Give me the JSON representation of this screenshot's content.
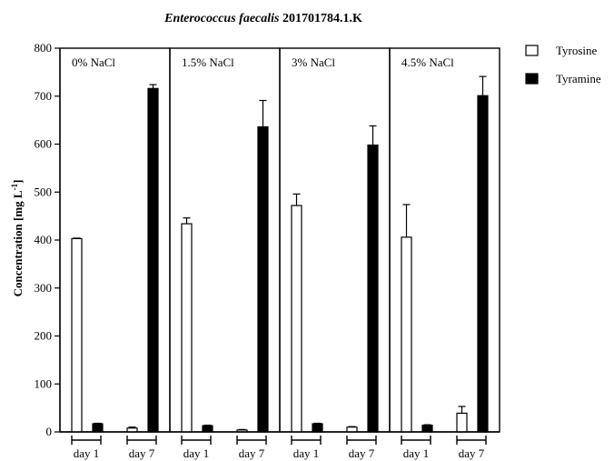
{
  "chart_data": {
    "type": "bar",
    "title": {
      "italic": "Enterococcus faecalis",
      "rest": " 201701784.1.K"
    },
    "ylabel": {
      "prefix": "Concentration [mg L",
      "sup": "-1",
      "suffix": "]"
    },
    "ylim": [
      0,
      800
    ],
    "yticks": [
      0,
      100,
      200,
      300,
      400,
      500,
      600,
      700,
      800
    ],
    "panels": [
      "0% NaCl",
      "1.5% NaCl",
      "3% NaCl",
      "4.5% NaCl"
    ],
    "groups": [
      "day 1",
      "day 7"
    ],
    "series": [
      {
        "name": "Tyrosine",
        "fill": "#ffffff",
        "values": [
          [
            403,
            8
          ],
          [
            434,
            4
          ],
          [
            472,
            10
          ],
          [
            406,
            39
          ]
        ],
        "errors": [
          [
            1,
            2
          ],
          [
            12,
            1
          ],
          [
            24,
            1
          ],
          [
            68,
            14
          ]
        ]
      },
      {
        "name": "Tyramine",
        "fill": "#000000",
        "values": [
          [
            17,
            716
          ],
          [
            13,
            636
          ],
          [
            17,
            598
          ],
          [
            14,
            701
          ]
        ],
        "errors": [
          [
            1,
            8
          ],
          [
            1,
            55
          ],
          [
            1,
            40
          ],
          [
            1,
            40
          ]
        ]
      }
    ],
    "legend_position": "top-right",
    "grid": false
  }
}
